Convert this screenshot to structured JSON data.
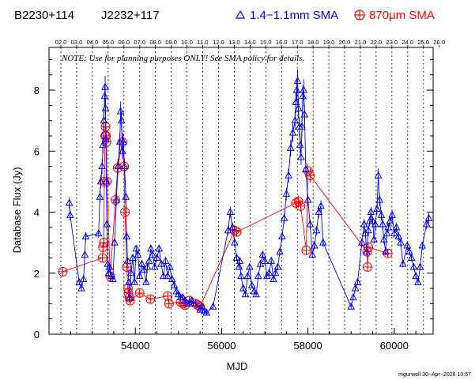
{
  "header": {
    "source_1": "B2230+114",
    "source_2": "J2232+117",
    "legend_1mm": "1.4−1.1mm SMA",
    "legend_870": "870μm SMA"
  },
  "note": "NOTE: Use for planning purposes ONLY! See SMA policy for details.",
  "credit": "mgurwell 30−Apr−2026 10:57",
  "colors": {
    "series_1mm": "#0000ff",
    "series_870": "#ff0000",
    "axis": "#000000"
  },
  "chart_data": {
    "type": "scatter",
    "xlabel": "MJD",
    "ylabel": "Database Flux (Jy)",
    "xlim": [
      52000,
      60900
    ],
    "ylim": [
      0,
      9.4
    ],
    "x_ticks": [
      54000,
      56000,
      58000,
      60000
    ],
    "y_ticks": [
      0,
      2,
      4,
      6,
      8
    ],
    "top_axis_labels": [
      "02.0",
      "03.0",
      "04.0",
      "05.0",
      "06.0",
      "07.0",
      "08.0",
      "09.0",
      "10.0",
      "11.0",
      "12.0",
      "13.0",
      "14.0",
      "15.0",
      "16.0",
      "17.0",
      "18.0",
      "19.0",
      "20.0",
      "21.0",
      "22.0",
      "23.0",
      "24.0",
      "25.0",
      "26.0"
    ],
    "top_axis_mjd": [
      52275,
      52640,
      53005,
      53371,
      53736,
      54101,
      54466,
      54832,
      55197,
      55562,
      55927,
      56293,
      56658,
      57023,
      57388,
      57754,
      58119,
      58484,
      58849,
      59215,
      59580,
      59945,
      60310,
      60676,
      61041
    ],
    "year_lines": [
      52275,
      52640,
      53005,
      53371,
      53736,
      54101,
      54466,
      54832,
      55197,
      55562,
      55927,
      56293,
      56658,
      57023,
      57388,
      57754,
      58119,
      58484,
      58849,
      59215,
      59580,
      59945,
      60310,
      60676
    ],
    "series": [
      {
        "name": "1.4−1.1mm SMA",
        "x": [
          52470,
          52490,
          52700,
          52750,
          52800,
          52830,
          52850,
          53150,
          53180,
          53200,
          53230,
          53250,
          53270,
          53290,
          53300,
          53310,
          53320,
          53330,
          53340,
          53360,
          53380,
          53400,
          53450,
          53480,
          53520,
          53560,
          53600,
          53640,
          53660,
          53680,
          53700,
          53720,
          53750,
          53780,
          53800,
          53820,
          53850,
          53870,
          53900,
          53940,
          53980,
          54020,
          54060,
          54100,
          54150,
          54200,
          54250,
          54280,
          54320,
          54360,
          54400,
          54450,
          54500,
          54550,
          54600,
          54650,
          54700,
          54750,
          54800,
          54850,
          54900,
          54950,
          55000,
          55050,
          55100,
          55150,
          55200,
          55250,
          55300,
          55400,
          55500,
          55550,
          55600,
          55650,
          55800,
          56150,
          56200,
          56250,
          56300,
          56350,
          56400,
          56420,
          56450,
          56500,
          56550,
          56600,
          56650,
          56700,
          56750,
          56800,
          56850,
          56900,
          56950,
          57000,
          57050,
          57100,
          57150,
          57200,
          57250,
          57300,
          57350,
          57400,
          57450,
          57500,
          57550,
          57600,
          57650,
          57700,
          57720,
          57740,
          57760,
          57780,
          57800,
          57820,
          57840,
          57860,
          57880,
          57900,
          57920,
          57950,
          58000,
          58050,
          58100,
          58150,
          58200,
          58250,
          58300,
          58350,
          59000,
          59050,
          59100,
          59150,
          59250,
          59300,
          59330,
          59360,
          59400,
          59430,
          59460,
          59500,
          59530,
          59560,
          59600,
          59630,
          59660,
          59700,
          59730,
          59760,
          59800,
          59830,
          59860,
          59900,
          59950,
          60000,
          60050,
          60100,
          60150,
          60200,
          60300,
          60350,
          60400,
          60450,
          60500,
          60550,
          60600,
          60650,
          60750,
          60800
        ],
        "values": [
          4.3,
          3.9,
          1.7,
          1.5,
          1.8,
          2.6,
          3.2,
          3.3,
          4.5,
          5.0,
          5.5,
          6.2,
          7.0,
          7.8,
          8.1,
          7.4,
          6.4,
          5.0,
          3.6,
          2.3,
          2.0,
          2.2,
          1.9,
          1.8,
          3.0,
          4.4,
          5.5,
          6.3,
          7.3,
          7.0,
          6.0,
          6.3,
          5.5,
          4.5,
          3.2,
          2.4,
          1.7,
          1.2,
          2.0,
          2.5,
          1.7,
          2.8,
          2.6,
          1.9,
          2.3,
          2.1,
          1.7,
          2.2,
          2.4,
          2.8,
          2.6,
          2.2,
          2.5,
          2.8,
          2.3,
          1.9,
          2.4,
          1.9,
          2.2,
          1.8,
          1.6,
          1.4,
          1.3,
          1.2,
          1.2,
          1.1,
          1.0,
          1.0,
          1.1,
          1.0,
          0.8,
          0.9,
          0.75,
          0.7,
          0.9,
          3.4,
          4.0,
          3.5,
          3.0,
          2.5,
          2.2,
          2.4,
          1.9,
          1.5,
          1.3,
          1.9,
          2.2,
          1.6,
          1.4,
          1.3,
          1.9,
          2.3,
          2.6,
          2.4,
          1.9,
          2.0,
          2.4,
          1.8,
          2.0,
          2.2,
          2.7,
          3.2,
          3.8,
          4.6,
          5.2,
          6.1,
          6.6,
          7.0,
          7.6,
          8.0,
          8.3,
          7.4,
          6.8,
          6.2,
          5.8,
          6.8,
          7.8,
          8.0,
          7.2,
          5.4,
          4.4,
          3.6,
          2.6,
          2.9,
          3.4,
          4.0,
          4.2,
          3.0,
          0.9,
          1.2,
          1.5,
          1.7,
          3.0,
          3.6,
          3.3,
          2.7,
          3.4,
          3.7,
          4.0,
          3.7,
          3.1,
          3.6,
          4.1,
          5.2,
          4.4,
          3.9,
          3.6,
          3.1,
          2.7,
          3.3,
          3.5,
          3.7,
          3.9,
          3.3,
          3.5,
          3.2,
          3.0,
          2.3,
          2.9,
          2.7,
          2.5,
          2.2,
          1.9,
          1.7,
          2.2,
          2.9,
          3.6,
          3.8
        ]
      },
      {
        "name": "870μm SMA",
        "x": [
          52320,
          53240,
          53250,
          53270,
          53280,
          53300,
          53310,
          53320,
          53330,
          53340,
          53420,
          53540,
          53590,
          53700,
          53740,
          53760,
          53800,
          53830,
          53840,
          53860,
          53880,
          54100,
          54350,
          54750,
          54780,
          55050,
          55110,
          55150,
          55250,
          55400,
          55450,
          55500,
          56300,
          56350,
          57720,
          57780,
          57830,
          57960,
          58000,
          58050,
          59370,
          59380,
          59400,
          59850
        ],
        "values": [
          2.05,
          2.5,
          2.85,
          3.0,
          5.0,
          6.5,
          6.8,
          6.5,
          6.3,
          5.0,
          1.9,
          4.4,
          5.45,
          6.3,
          5.5,
          4.0,
          2.2,
          1.5,
          1.35,
          1.2,
          1.1,
          1.35,
          1.15,
          1.25,
          1.0,
          1.05,
          1.0,
          0.95,
          1.1,
          1.0,
          0.95,
          0.9,
          3.4,
          3.35,
          4.3,
          4.35,
          4.2,
          2.75,
          5.35,
          5.2,
          2.7,
          2.2,
          2.85,
          2.65
        ]
      }
    ]
  }
}
